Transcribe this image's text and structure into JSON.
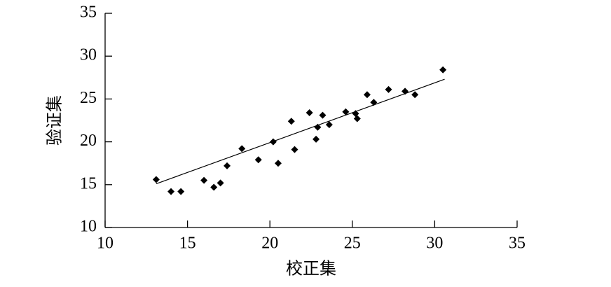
{
  "chart_data": {
    "type": "scatter",
    "x_label": "校正集",
    "y_label": "验证集",
    "xlim": [
      10,
      35
    ],
    "ylim": [
      10,
      35
    ],
    "xticks": [
      10,
      15,
      20,
      25,
      30,
      35
    ],
    "yticks": [
      10,
      15,
      20,
      25,
      30,
      35
    ],
    "series": [
      {
        "color": "#000000",
        "x": [
          13.1,
          14.0,
          14.6,
          16.0,
          16.6,
          17.0,
          17.4,
          18.3,
          19.3,
          20.2,
          20.5,
          21.3,
          21.5,
          22.4,
          22.8,
          22.9,
          23.2,
          23.6,
          24.6,
          25.2,
          25.3,
          25.9,
          26.3,
          27.2,
          28.2,
          28.8,
          30.5
        ],
        "values": [
          15.6,
          14.2,
          14.2,
          15.5,
          14.7,
          15.2,
          17.2,
          19.2,
          17.9,
          20.0,
          17.5,
          22.4,
          19.1,
          23.4,
          20.3,
          21.7,
          23.1,
          22.0,
          23.5,
          23.3,
          22.7,
          25.5,
          24.6,
          26.1,
          25.9,
          25.5,
          28.4
        ]
      }
    ],
    "trendline": {
      "color": "#000000",
      "x": [
        13.1,
        30.6
      ],
      "values": [
        15.1,
        27.3
      ]
    }
  }
}
